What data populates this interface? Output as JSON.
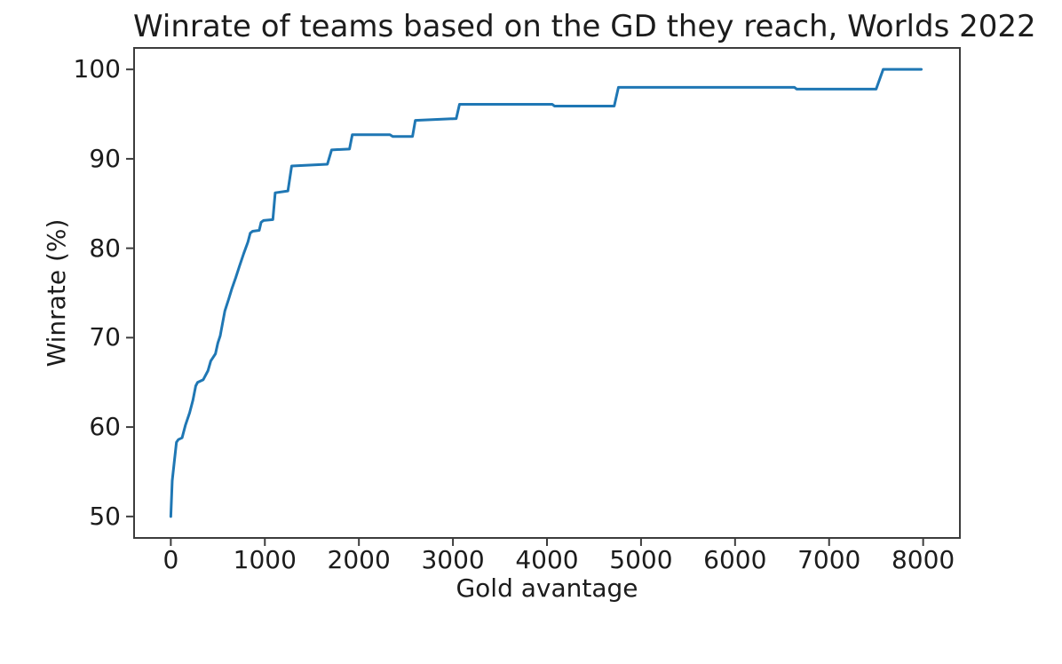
{
  "chart_data": {
    "type": "line",
    "title": "Winrate of teams based on the GD they reach, Worlds 2022",
    "xlabel": "Gold avantage",
    "ylabel": "Winrate (%)",
    "xlim": [
      -400,
      8400
    ],
    "ylim": [
      47.5,
      102.5
    ],
    "x_ticks": [
      0,
      1000,
      2000,
      3000,
      4000,
      5000,
      6000,
      7000,
      8000
    ],
    "y_ticks": [
      50,
      60,
      70,
      80,
      90,
      100
    ],
    "grid": false,
    "legend": "none",
    "line_color": "#1f77b4",
    "axis_color": "#3c3c3c",
    "text_color": "#1c1c1c",
    "background_color": "#ffffff",
    "series": [
      {
        "name": "Winrate",
        "points": [
          [
            0,
            50
          ],
          [
            15,
            54
          ],
          [
            40,
            56.4
          ],
          [
            60,
            58.3
          ],
          [
            80,
            58.6
          ],
          [
            120,
            58.8
          ],
          [
            155,
            60.2
          ],
          [
            200,
            61.6
          ],
          [
            235,
            63.0
          ],
          [
            265,
            64.6
          ],
          [
            285,
            65.0
          ],
          [
            345,
            65.3
          ],
          [
            395,
            66.3
          ],
          [
            425,
            67.4
          ],
          [
            450,
            67.8
          ],
          [
            475,
            68.2
          ],
          [
            500,
            69.4
          ],
          [
            525,
            70.2
          ],
          [
            550,
            71.6
          ],
          [
            575,
            73.0
          ],
          [
            615,
            74.3
          ],
          [
            650,
            75.5
          ],
          [
            690,
            76.7
          ],
          [
            730,
            78.0
          ],
          [
            775,
            79.4
          ],
          [
            820,
            80.7
          ],
          [
            845,
            81.7
          ],
          [
            870,
            81.9
          ],
          [
            940,
            82.0
          ],
          [
            960,
            82.9
          ],
          [
            985,
            83.1
          ],
          [
            1085,
            83.2
          ],
          [
            1110,
            86.2
          ],
          [
            1245,
            86.4
          ],
          [
            1285,
            89.2
          ],
          [
            1665,
            89.4
          ],
          [
            1710,
            91.0
          ],
          [
            1900,
            91.1
          ],
          [
            1930,
            92.7
          ],
          [
            2330,
            92.7
          ],
          [
            2360,
            92.5
          ],
          [
            2570,
            92.5
          ],
          [
            2600,
            94.3
          ],
          [
            3035,
            94.5
          ],
          [
            3070,
            96.1
          ],
          [
            4055,
            96.1
          ],
          [
            4080,
            95.9
          ],
          [
            4715,
            95.9
          ],
          [
            4760,
            98.0
          ],
          [
            6630,
            98.0
          ],
          [
            6655,
            97.8
          ],
          [
            7500,
            97.8
          ],
          [
            7575,
            100
          ],
          [
            7980,
            100
          ]
        ]
      }
    ]
  }
}
